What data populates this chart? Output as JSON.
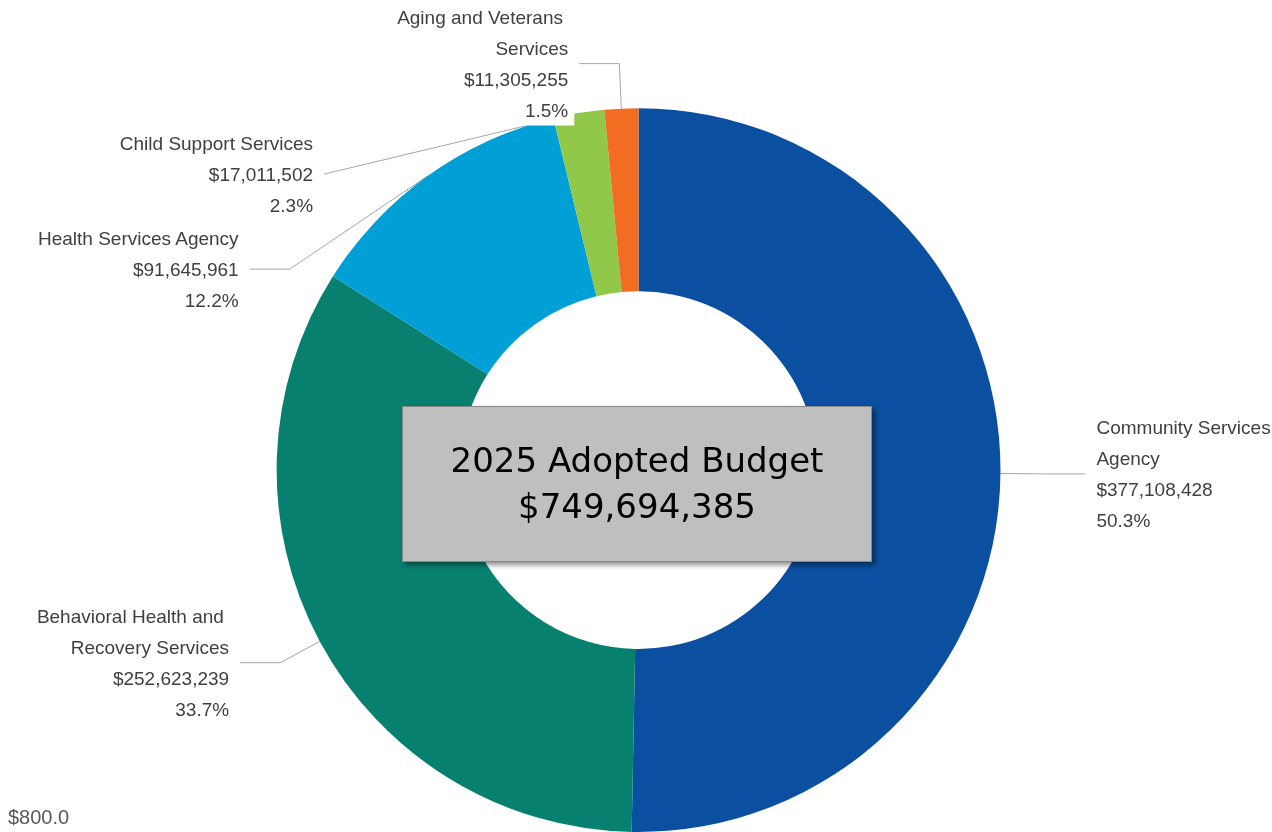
{
  "chart_data": {
    "type": "donut",
    "title": "2025 Adopted Budget",
    "subtitle": "$749,694,385",
    "categories": [
      "Community Services Agency",
      "Behavioral Health and Recovery Services",
      "Health Services Agency",
      "Child Support Services",
      "Aging and Veterans Services"
    ],
    "values": [
      377108428,
      252623239,
      91645961,
      17011502,
      11305255
    ],
    "colors": [
      "#0b4fa0",
      "#078070",
      "#00a0d6",
      "#92c84a",
      "#f26c22"
    ],
    "value_labels": [
      "$377,108,428\n50.3%",
      "$252,623,239\n33.7%",
      "$91,645,961\n12.2%",
      "$17,011,502\n2.3%",
      "$11,305,255\n1.5%"
    ],
    "annotations": [
      "$800.0"
    ]
  }
}
